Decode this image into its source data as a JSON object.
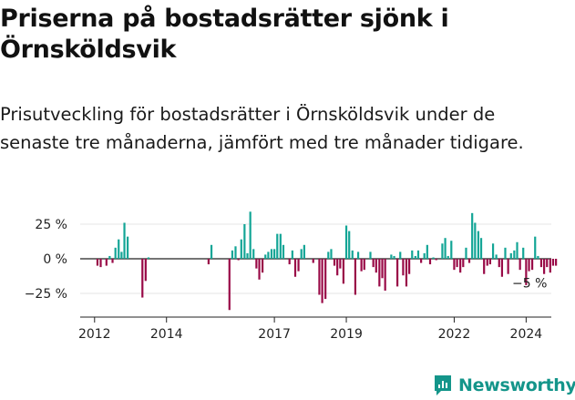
{
  "header": {
    "title": "Priserna på bostadsrätter sjönk i Örnsköldsvik",
    "subtitle": "Prisutveckling för bostadsrätter i Örnsköldsvik under de senaste tre månaderna, jämfört med tre månader tidigare."
  },
  "brand": {
    "name": "Newsworthy"
  },
  "colors": {
    "positive": "#13a596",
    "negative": "#990a47",
    "axis": "#222222",
    "brand": "#14958a"
  },
  "chart_data": {
    "type": "bar",
    "title": "",
    "xlabel": "",
    "ylabel": "",
    "ylim": [
      -0.4,
      0.4
    ],
    "y_ticks": [
      {
        "value": 0.25,
        "label": "25 %"
      },
      {
        "value": 0,
        "label": "0 %"
      },
      {
        "value": -0.25,
        "label": "−25 %"
      }
    ],
    "x_range": [
      2011.6,
      2024.7
    ],
    "x_ticks": [
      {
        "value": 2012,
        "label": "2012"
      },
      {
        "value": 2014,
        "label": "2014"
      },
      {
        "value": 2017,
        "label": "2017"
      },
      {
        "value": 2019,
        "label": "2019"
      },
      {
        "value": 2022,
        "label": "2022"
      },
      {
        "value": 2024,
        "label": "2024"
      }
    ],
    "last_value_label": "−5 %",
    "series": [
      {
        "values": [
          [
            2012.08,
            -0.05
          ],
          [
            2012.17,
            -0.06
          ],
          [
            2012.33,
            -0.05
          ],
          [
            2012.42,
            0.02
          ],
          [
            2012.5,
            -0.03
          ],
          [
            2012.58,
            0.08
          ],
          [
            2012.67,
            0.14
          ],
          [
            2012.75,
            0.05
          ],
          [
            2012.83,
            0.26
          ],
          [
            2012.92,
            0.16
          ],
          [
            2013.33,
            -0.28
          ],
          [
            2013.42,
            -0.16
          ],
          [
            2013.5,
            0.01
          ],
          [
            2015.17,
            -0.04
          ],
          [
            2015.25,
            0.1
          ],
          [
            2015.75,
            -0.37
          ],
          [
            2015.83,
            0.06
          ],
          [
            2015.92,
            0.09
          ],
          [
            2016.0,
            -0.01
          ],
          [
            2016.08,
            0.14
          ],
          [
            2016.17,
            0.25
          ],
          [
            2016.25,
            0.04
          ],
          [
            2016.33,
            0.34
          ],
          [
            2016.42,
            0.07
          ],
          [
            2016.5,
            -0.07
          ],
          [
            2016.58,
            -0.15
          ],
          [
            2016.67,
            -0.1
          ],
          [
            2016.75,
            0.03
          ],
          [
            2016.83,
            0.05
          ],
          [
            2016.92,
            0.07
          ],
          [
            2017.0,
            0.07
          ],
          [
            2017.08,
            0.18
          ],
          [
            2017.17,
            0.18
          ],
          [
            2017.25,
            0.1
          ],
          [
            2017.42,
            -0.04
          ],
          [
            2017.5,
            0.06
          ],
          [
            2017.58,
            -0.13
          ],
          [
            2017.67,
            -0.09
          ],
          [
            2017.75,
            0.07
          ],
          [
            2017.83,
            0.1
          ],
          [
            2018.08,
            -0.03
          ],
          [
            2018.25,
            -0.26
          ],
          [
            2018.33,
            -0.32
          ],
          [
            2018.42,
            -0.29
          ],
          [
            2018.5,
            0.05
          ],
          [
            2018.58,
            0.07
          ],
          [
            2018.67,
            -0.05
          ],
          [
            2018.75,
            -0.12
          ],
          [
            2018.83,
            -0.07
          ],
          [
            2018.92,
            -0.18
          ],
          [
            2019.0,
            0.24
          ],
          [
            2019.08,
            0.2
          ],
          [
            2019.17,
            0.06
          ],
          [
            2019.25,
            -0.26
          ],
          [
            2019.33,
            0.05
          ],
          [
            2019.42,
            -0.09
          ],
          [
            2019.5,
            -0.08
          ],
          [
            2019.67,
            0.05
          ],
          [
            2019.75,
            -0.06
          ],
          [
            2019.83,
            -0.1
          ],
          [
            2019.92,
            -0.2
          ],
          [
            2020.0,
            -0.14
          ],
          [
            2020.08,
            -0.23
          ],
          [
            2020.25,
            0.03
          ],
          [
            2020.33,
            0.02
          ],
          [
            2020.42,
            -0.2
          ],
          [
            2020.5,
            0.05
          ],
          [
            2020.58,
            -0.12
          ],
          [
            2020.67,
            -0.2
          ],
          [
            2020.75,
            -0.11
          ],
          [
            2020.83,
            0.06
          ],
          [
            2020.92,
            0.02
          ],
          [
            2021.0,
            0.06
          ],
          [
            2021.08,
            -0.03
          ],
          [
            2021.17,
            0.04
          ],
          [
            2021.25,
            0.1
          ],
          [
            2021.33,
            -0.04
          ],
          [
            2021.42,
            0.01
          ],
          [
            2021.5,
            -0.01
          ],
          [
            2021.67,
            0.11
          ],
          [
            2021.75,
            0.15
          ],
          [
            2021.83,
            0.02
          ],
          [
            2021.92,
            0.13
          ],
          [
            2022.0,
            -0.08
          ],
          [
            2022.08,
            -0.06
          ],
          [
            2022.17,
            -0.1
          ],
          [
            2022.25,
            -0.06
          ],
          [
            2022.33,
            0.08
          ],
          [
            2022.42,
            -0.03
          ],
          [
            2022.5,
            0.33
          ],
          [
            2022.58,
            0.26
          ],
          [
            2022.67,
            0.2
          ],
          [
            2022.75,
            0.15
          ],
          [
            2022.83,
            -0.11
          ],
          [
            2022.92,
            -0.05
          ],
          [
            2023.0,
            -0.04
          ],
          [
            2023.08,
            0.11
          ],
          [
            2023.17,
            0.03
          ],
          [
            2023.25,
            -0.06
          ],
          [
            2023.33,
            -0.13
          ],
          [
            2023.42,
            0.08
          ],
          [
            2023.5,
            -0.11
          ],
          [
            2023.58,
            0.04
          ],
          [
            2023.67,
            0.06
          ],
          [
            2023.75,
            0.12
          ],
          [
            2023.83,
            -0.08
          ],
          [
            2023.92,
            0.08
          ],
          [
            2024.0,
            -0.19
          ],
          [
            2024.08,
            -0.09
          ],
          [
            2024.17,
            -0.08
          ],
          [
            2024.25,
            0.16
          ],
          [
            2024.33,
            0.02
          ],
          [
            2024.42,
            -0.06
          ],
          [
            2024.5,
            -0.11
          ],
          [
            2024.58,
            -0.06
          ],
          [
            2024.67,
            -0.1
          ],
          [
            2024.75,
            -0.05
          ],
          [
            2024.83,
            -0.05
          ]
        ]
      }
    ]
  }
}
